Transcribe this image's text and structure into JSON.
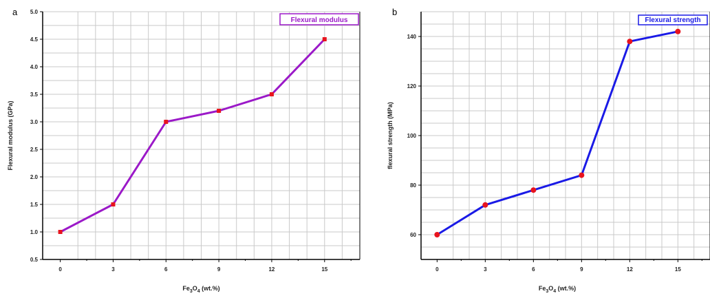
{
  "chart_data": [
    {
      "panel_label": "a",
      "type": "line",
      "legend": "Flexural modulus",
      "legend_position": "top-right",
      "color": "#9b19c8",
      "marker_color": "#e8141e",
      "xlabel_base": "Fe",
      "xlabel_sub1": "3",
      "xlabel_mid": "O",
      "xlabel_sub2": "4",
      "xlabel_tail": " (wt.%)",
      "ylabel": "Flexural modulus (GPa)",
      "x": [
        0,
        3,
        6,
        9,
        12,
        15
      ],
      "y": [
        1.0,
        1.5,
        3.0,
        3.2,
        3.5,
        4.5
      ],
      "xlim": [
        -1,
        17
      ],
      "ylim": [
        0.5,
        5.0
      ],
      "xticks": [
        "0",
        "3",
        "6",
        "9",
        "12",
        "15"
      ],
      "yticks": [
        "0.5",
        "1.0",
        "1.5",
        "2.0",
        "2.5",
        "3.0",
        "3.5",
        "4.0",
        "4.5",
        "5.0"
      ],
      "grid": true
    },
    {
      "panel_label": "b",
      "type": "line",
      "legend": "Flexural strength",
      "legend_position": "top-right",
      "color": "#1a1ae6",
      "marker_color": "#e8141e",
      "xlabel_base": "Fe",
      "xlabel_sub1": "3",
      "xlabel_mid": "O",
      "xlabel_sub2": "4",
      "xlabel_tail": " (wt.%)",
      "ylabel": "flexural strength (MPa)",
      "x": [
        0,
        3,
        6,
        9,
        12,
        15
      ],
      "y": [
        60,
        72,
        78,
        84,
        138,
        142
      ],
      "xlim": [
        -1,
        17
      ],
      "ylim": [
        50,
        150
      ],
      "xticks": [
        "0",
        "3",
        "6",
        "9",
        "12",
        "15"
      ],
      "yticks": [
        "60",
        "80",
        "100",
        "120",
        "140"
      ],
      "grid": true
    }
  ]
}
